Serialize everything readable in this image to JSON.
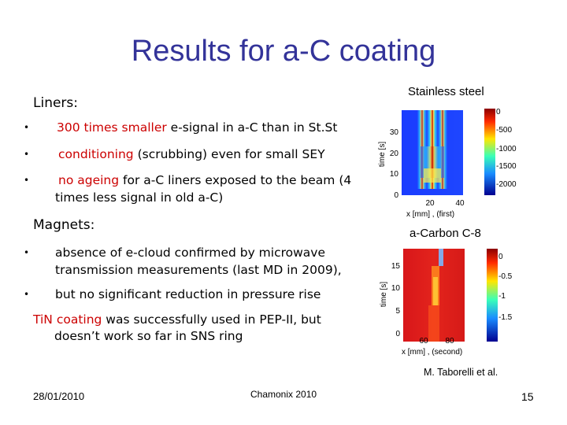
{
  "slide": {
    "title": "Results for a-C coating",
    "liners": {
      "heading": "Liners:",
      "bullet_symbol": "•",
      "b1_red": "300 times smaller",
      "b1_rest": " e-signal in a-C  than in St.St",
      "b2_red": "conditioning",
      "b2_rest": " (scrubbing) even for small SEY",
      "b3_red": "no ageing",
      "b3_rest": " for a-C liners exposed to the beam  (4",
      "b3_line2": "times less signal in old a-C)"
    },
    "magnets": {
      "heading": "Magnets:",
      "b1_line1": "absence of e-cloud confirmed by microwave",
      "b1_line2": "transmission measurements (last MD in 2009),",
      "b2": "but no significant reduction in pressure rise"
    },
    "tin": {
      "red": "TiN coating",
      "rest": " was successfully used in PEP-II, but",
      "line2": "doesn’t work so far in SNS ring"
    },
    "plots": {
      "top": {
        "label": "Stainless steel",
        "ylabel": "time [s]",
        "yticks": [
          "30",
          "20",
          "10",
          "0"
        ],
        "xticks": [
          "20",
          "40"
        ],
        "xlabel": "x [mm]   , (first)",
        "cbar_ticks": [
          "0",
          "-500",
          "-1000",
          "-1500",
          "-2000"
        ]
      },
      "bottom": {
        "label": "a-Carbon C-8",
        "ylabel": "time [s]",
        "yticks": [
          "15",
          "10",
          "5",
          "0"
        ],
        "xticks": [
          "60",
          "80"
        ],
        "xlabel": "x [mm]   , (second)",
        "cbar_ticks": [
          "0",
          "-0.5",
          "-1",
          "-1.5"
        ]
      }
    },
    "credit": "M. Taborelli et al.",
    "date": "28/01/2010",
    "event": "Chamonix 2010",
    "page": "15"
  }
}
